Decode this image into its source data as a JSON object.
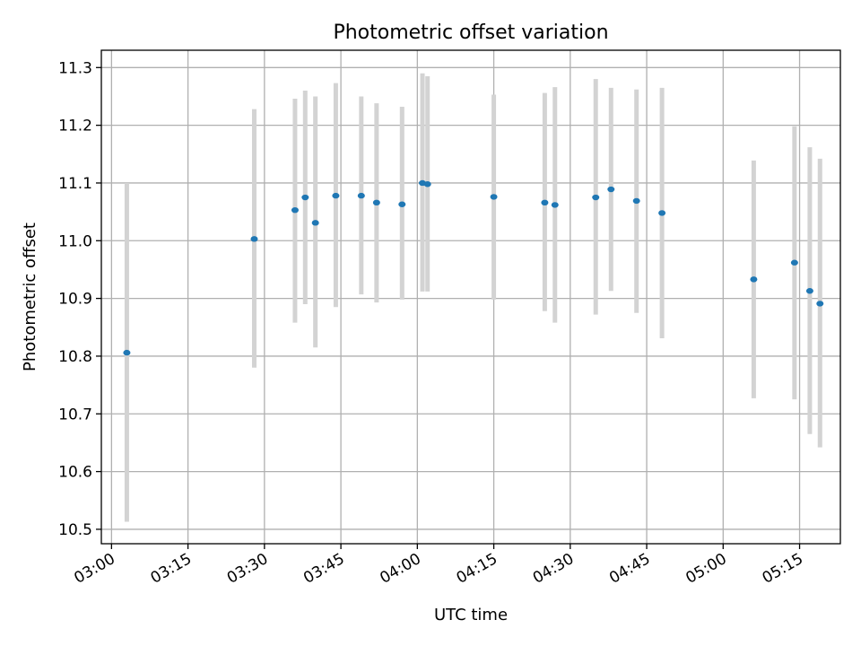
{
  "chart_data": {
    "type": "scatter",
    "title": "Photometric offset variation",
    "xlabel": "UTC time",
    "ylabel": "Photometric offset",
    "x_unit": "HH:MM UTC",
    "xlim": [
      "02:58",
      "05:23"
    ],
    "ylim": [
      10.475,
      11.33
    ],
    "x_ticks": [
      "03:00",
      "03:15",
      "03:30",
      "03:45",
      "04:00",
      "04:15",
      "04:30",
      "04:45",
      "05:00",
      "05:15"
    ],
    "y_ticks": [
      "10.5",
      "10.6",
      "10.7",
      "10.8",
      "10.9",
      "11.0",
      "11.1",
      "11.2",
      "11.3"
    ],
    "grid": true,
    "point_color": "#1f77b4",
    "errorbar_color": "#d3d3d3",
    "points": [
      {
        "x": "03:03",
        "y": 10.806,
        "ylow": 10.513,
        "yhigh": 11.1
      },
      {
        "x": "03:28",
        "y": 11.003,
        "ylow": 10.78,
        "yhigh": 11.228
      },
      {
        "x": "03:36",
        "y": 11.053,
        "ylow": 10.858,
        "yhigh": 11.246
      },
      {
        "x": "03:38",
        "y": 11.075,
        "ylow": 10.89,
        "yhigh": 11.26
      },
      {
        "x": "03:40",
        "y": 11.031,
        "ylow": 10.815,
        "yhigh": 11.25
      },
      {
        "x": "03:44",
        "y": 11.078,
        "ylow": 10.885,
        "yhigh": 11.273
      },
      {
        "x": "03:49",
        "y": 11.078,
        "ylow": 10.907,
        "yhigh": 11.25
      },
      {
        "x": "03:52",
        "y": 11.066,
        "ylow": 10.893,
        "yhigh": 11.238
      },
      {
        "x": "03:57",
        "y": 11.063,
        "ylow": 10.898,
        "yhigh": 11.232
      },
      {
        "x": "04:01",
        "y": 11.1,
        "ylow": 10.912,
        "yhigh": 11.29
      },
      {
        "x": "04:02",
        "y": 11.098,
        "ylow": 10.912,
        "yhigh": 11.285
      },
      {
        "x": "04:15",
        "y": 11.076,
        "ylow": 10.898,
        "yhigh": 11.253
      },
      {
        "x": "04:25",
        "y": 11.066,
        "ylow": 10.878,
        "yhigh": 11.256
      },
      {
        "x": "04:27",
        "y": 11.062,
        "ylow": 10.858,
        "yhigh": 11.266
      },
      {
        "x": "04:35",
        "y": 11.075,
        "ylow": 10.872,
        "yhigh": 11.28
      },
      {
        "x": "04:38",
        "y": 11.089,
        "ylow": 10.913,
        "yhigh": 11.265
      },
      {
        "x": "04:43",
        "y": 11.069,
        "ylow": 10.875,
        "yhigh": 11.262
      },
      {
        "x": "04:48",
        "y": 11.048,
        "ylow": 10.831,
        "yhigh": 11.265
      },
      {
        "x": "05:06",
        "y": 10.933,
        "ylow": 10.727,
        "yhigh": 11.139
      },
      {
        "x": "05:14",
        "y": 10.962,
        "ylow": 10.725,
        "yhigh": 11.198
      },
      {
        "x": "05:17",
        "y": 10.913,
        "ylow": 10.665,
        "yhigh": 11.162
      },
      {
        "x": "05:19",
        "y": 10.891,
        "ylow": 10.642,
        "yhigh": 11.142
      }
    ]
  }
}
